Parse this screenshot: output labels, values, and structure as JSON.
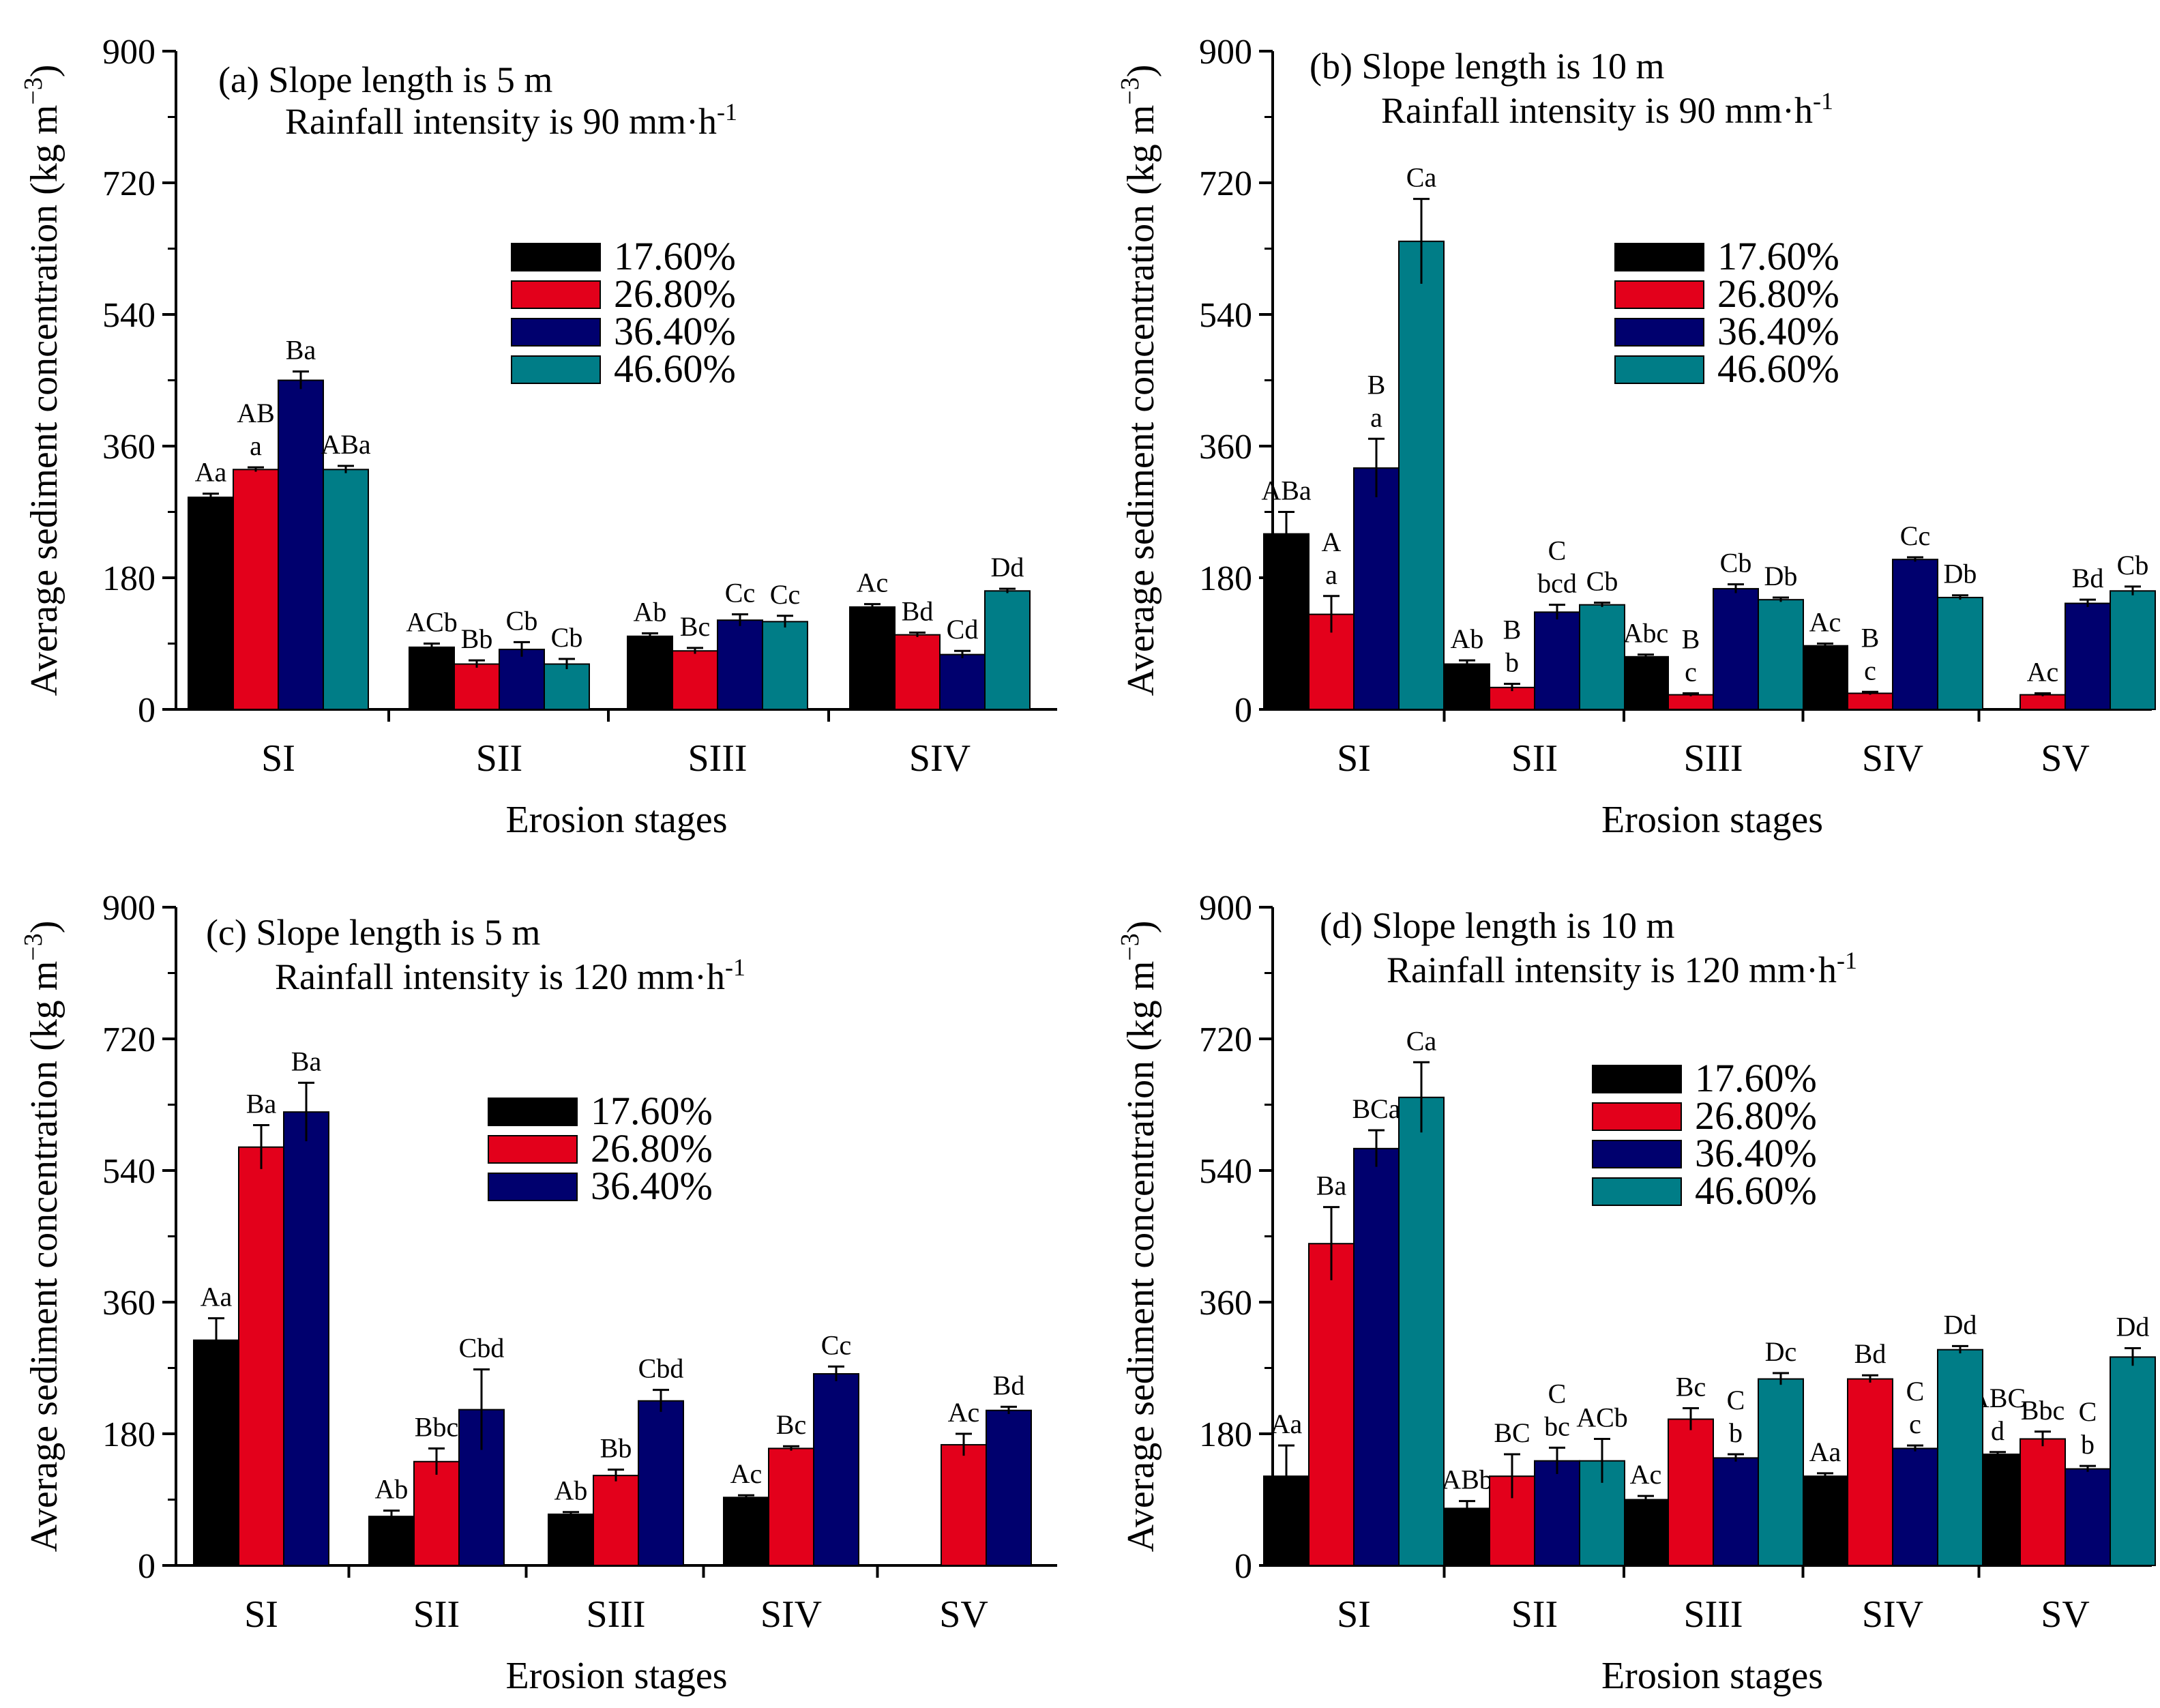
{
  "colors": {
    "17.60%": "#000000",
    "26.80%": "#e3001b",
    "36.40%": "#00006e",
    "46.60%": "#007d87"
  },
  "chart_data": [
    {
      "type": "bar",
      "title": "(a) Slope length is 5 m",
      "subtitle": "Rainfall intensity is 90 mm·h",
      "subtitle_sup": "-1",
      "xlabel": "Erosion stages",
      "ylabel": "Average sediment concentration (kg m",
      "ylabel_sup": "−3",
      "ylabel_close": ")",
      "ylim": [
        0,
        900
      ],
      "yticks": [
        0,
        180,
        360,
        540,
        720,
        900
      ],
      "grid": false,
      "legend": "center-right",
      "categories": [
        "SI",
        "SII",
        "SIII",
        "SIV"
      ],
      "series": [
        {
          "name": "17.60%",
          "values": [
            290,
            85,
            100,
            140
          ],
          "errors": [
            5,
            5,
            4,
            4
          ],
          "labels": [
            [
              "Aa"
            ],
            [
              "ACb"
            ],
            [
              "Ab"
            ],
            [
              "Ac"
            ]
          ]
        },
        {
          "name": "26.80%",
          "values": [
            328,
            62,
            80,
            102
          ],
          "errors": [
            3,
            5,
            4,
            3
          ],
          "labels": [
            [
              "a",
              "AB"
            ],
            [
              "Bb"
            ],
            [
              "Bc"
            ],
            [
              "Bd"
            ]
          ]
        },
        {
          "name": "36.40%",
          "values": [
            450,
            82,
            122,
            75
          ],
          "errors": [
            12,
            10,
            8,
            5
          ],
          "labels": [
            [
              "Ba"
            ],
            [
              "Cb"
            ],
            [
              "Cc"
            ],
            [
              "Cd"
            ]
          ]
        },
        {
          "name": "46.60%",
          "values": [
            328,
            62,
            120,
            162
          ],
          "errors": [
            5,
            7,
            8,
            3
          ],
          "labels": [
            [
              "ABa"
            ],
            [
              "Cb"
            ],
            [
              "Cc"
            ],
            [
              "Dd"
            ]
          ]
        }
      ]
    },
    {
      "type": "bar",
      "title": "(b) Slope length is 10 m",
      "subtitle": "Rainfall intensity is 90 mm·h",
      "subtitle_sup": "-1",
      "xlabel": "Erosion stages",
      "ylabel": "Average sediment concentration (kg m",
      "ylabel_sup": "−3",
      "ylabel_close": ")",
      "ylim": [
        0,
        900
      ],
      "yticks": [
        0,
        180,
        360,
        540,
        720,
        900
      ],
      "grid": false,
      "legend": "center-right",
      "categories": [
        "SI",
        "SII",
        "SIII",
        "SIV",
        "SV"
      ],
      "series": [
        {
          "name": "17.60%",
          "values": [
            240,
            62,
            72,
            87,
            null
          ],
          "errors": [
            30,
            5,
            3,
            3,
            null
          ],
          "labels": [
            [
              "ABa"
            ],
            [
              "Ab"
            ],
            [
              "Abc"
            ],
            [
              "Ac"
            ],
            []
          ]
        },
        {
          "name": "26.80%",
          "values": [
            130,
            30,
            20,
            22,
            20
          ],
          "errors": [
            25,
            5,
            2,
            2,
            2
          ],
          "labels": [
            [
              "a",
              "A"
            ],
            [
              "b",
              "B"
            ],
            [
              "c",
              "B"
            ],
            [
              "c",
              "B"
            ],
            [
              "Ac"
            ]
          ]
        },
        {
          "name": "36.40%",
          "values": [
            330,
            133,
            165,
            205,
            145
          ],
          "errors": [
            40,
            10,
            6,
            3,
            5
          ],
          "labels": [
            [
              "a",
              "B"
            ],
            [
              "bcd",
              "C"
            ],
            [
              "Cb"
            ],
            [
              "Cc"
            ],
            [
              "Bd"
            ]
          ]
        },
        {
          "name": "46.60%",
          "values": [
            640,
            143,
            150,
            153,
            162
          ],
          "errors": [
            58,
            3,
            3,
            3,
            6
          ],
          "labels": [
            [
              "Ca"
            ],
            [
              "Cb"
            ],
            [
              "Db"
            ],
            [
              "Db"
            ],
            [
              "Cb"
            ]
          ]
        }
      ]
    },
    {
      "type": "bar",
      "title": "(c) Slope length is 5 m",
      "subtitle": "Rainfall intensity is 120 mm·h",
      "subtitle_sup": "-1",
      "xlabel": "Erosion stages",
      "ylabel": "Average sediment concentration (kg m",
      "ylabel_sup": "−3",
      "ylabel_close": ")",
      "ylim": [
        0,
        900
      ],
      "yticks": [
        0,
        180,
        360,
        540,
        720,
        900
      ],
      "grid": false,
      "legend": "center-right",
      "categories": [
        "SI",
        "SII",
        "SIII",
        "SIV",
        "SV"
      ],
      "series": [
        {
          "name": "17.60%",
          "values": [
            308,
            67,
            70,
            93,
            null
          ],
          "errors": [
            30,
            8,
            3,
            3,
            null
          ],
          "labels": [
            [
              "Aa"
            ],
            [
              "Ab"
            ],
            [
              "Ab"
            ],
            [
              "Ac"
            ],
            []
          ]
        },
        {
          "name": "26.80%",
          "values": [
            572,
            142,
            123,
            160,
            165
          ],
          "errors": [
            30,
            18,
            8,
            3,
            15
          ],
          "labels": [
            [
              "Ba"
            ],
            [
              "Bbc"
            ],
            [
              "Bb"
            ],
            [
              "Bc"
            ],
            [
              "Ac"
            ]
          ]
        },
        {
          "name": "36.40%",
          "values": [
            620,
            213,
            225,
            262,
            212
          ],
          "errors": [
            40,
            55,
            15,
            10,
            5
          ],
          "labels": [
            [
              "Ba"
            ],
            [
              "Cbd"
            ],
            [
              "Cbd"
            ],
            [
              "Cc"
            ],
            [
              "Bd"
            ]
          ]
        }
      ]
    },
    {
      "type": "bar",
      "title": "(d) Slope length is 10 m",
      "subtitle": "Rainfall intensity is 120 mm·h",
      "subtitle_sup": "-1",
      "xlabel": "Erosion stages",
      "ylabel": "Average sediment concentration (kg m",
      "ylabel_sup": "−3",
      "ylabel_close": ")",
      "ylim": [
        0,
        900
      ],
      "yticks": [
        0,
        180,
        360,
        540,
        720,
        900
      ],
      "grid": false,
      "legend": "center-right",
      "categories": [
        "SI",
        "SII",
        "SIII",
        "SIV",
        "SV"
      ],
      "series": [
        {
          "name": "17.60%",
          "values": [
            122,
            78,
            90,
            122,
            152
          ],
          "errors": [
            42,
            10,
            5,
            4,
            3
          ],
          "labels": [
            [
              "Aa"
            ],
            [
              "ABb"
            ],
            [
              "Ac"
            ],
            [
              "Aa"
            ],
            [
              "d",
              "ABC"
            ]
          ]
        },
        {
          "name": "26.80%",
          "values": [
            440,
            122,
            200,
            255,
            173
          ],
          "errors": [
            50,
            30,
            15,
            5,
            10
          ],
          "labels": [
            [
              "Ba"
            ],
            [
              "BC"
            ],
            [
              "Bc"
            ],
            [
              "Bd"
            ],
            [
              "Bbc"
            ]
          ]
        },
        {
          "name": "36.40%",
          "values": [
            570,
            143,
            147,
            160,
            132
          ],
          "errors": [
            25,
            18,
            5,
            4,
            4
          ],
          "labels": [
            [
              "BCa"
            ],
            [
              "bc",
              "C"
            ],
            [
              "b",
              "C"
            ],
            [
              "c",
              "C"
            ],
            [
              "b",
              "C"
            ]
          ]
        },
        {
          "name": "46.60%",
          "values": [
            640,
            143,
            255,
            295,
            285
          ],
          "errors": [
            48,
            30,
            8,
            5,
            12
          ],
          "labels": [
            [
              "Ca"
            ],
            [
              "ACb"
            ],
            [
              "Dc"
            ],
            [
              "Dd"
            ],
            [
              "Dd"
            ]
          ]
        }
      ]
    }
  ]
}
